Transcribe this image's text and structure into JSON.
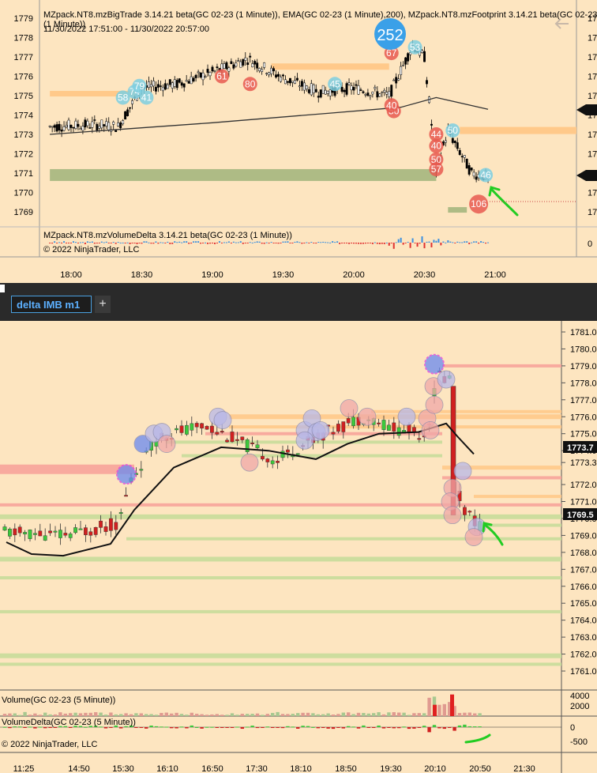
{
  "top_chart": {
    "header_line1": "MZpack.NT8.mzBigTrade 3.14.21 beta(GC 02-23 (1 Minute)), EMA(GC 02-23 (1 Minute),200), MZpack.NT8.mzFootprint 3.14.21 beta(GC 02-23",
    "header_line2": "(1 Minute))",
    "date_range": "11/30/2022 17:51:00 - 11/30/2022 20:57:00",
    "sub_header": "MZpack.NT8.mzVolumeDelta 3.14.21 beta(GC 02-23 (1 Minute))",
    "copyright": "© 2022 NinjaTrader, LLC",
    "big_trade_label": "252",
    "bubble_labels": [
      "58",
      "74",
      "79",
      "41",
      "80",
      "61",
      "45",
      "67",
      "53",
      "50",
      "40",
      "40",
      "44",
      "50",
      "57",
      "106",
      "50",
      "46"
    ],
    "delta_zero_label": "0"
  },
  "tab": {
    "label": "delta IMB m1",
    "add_label": "+"
  },
  "bottom_chart": {
    "volume_title": "Volume(GC 02-23 (5 Minute))",
    "delta_title": "VolumeDelta(GC 02-23 (5 Minute))",
    "copyright": "© 2022 NinjaTrader, LLC",
    "price_tag_1": "1773.7",
    "price_tag_2": "1769.5"
  },
  "chart_data": [
    {
      "type": "candlestick",
      "instrument": "GC 02-23",
      "timeframe": "1 Minute",
      "y_ticks": [
        1779,
        1778,
        1777,
        1776,
        1775,
        1774,
        1773,
        1772,
        1771,
        1770,
        1769
      ],
      "x_ticks": [
        "18:00",
        "18:30",
        "19:00",
        "19:30",
        "20:00",
        "20:30",
        "21:00"
      ],
      "ylim": [
        1768.5,
        1779.3
      ],
      "approx_close_path": [
        {
          "time": "17:51",
          "price": 1773.4
        },
        {
          "time": "18:10",
          "price": 1773.5
        },
        {
          "time": "18:20",
          "price": 1773.4
        },
        {
          "time": "18:30",
          "price": 1775.4
        },
        {
          "time": "18:45",
          "price": 1775.6
        },
        {
          "time": "19:00",
          "price": 1776.2
        },
        {
          "time": "19:15",
          "price": 1776.9
        },
        {
          "time": "19:30",
          "price": 1775.9
        },
        {
          "time": "19:45",
          "price": 1775.2
        },
        {
          "time": "20:00",
          "price": 1775.4
        },
        {
          "time": "20:15",
          "price": 1775.0
        },
        {
          "time": "20:25",
          "price": 1777.6
        },
        {
          "time": "20:30",
          "price": 1777.0
        },
        {
          "time": "20:35",
          "price": 1771.2
        },
        {
          "time": "20:40",
          "price": 1773.2
        },
        {
          "time": "20:50",
          "price": 1771.0
        },
        {
          "time": "20:57",
          "price": 1770.8
        }
      ],
      "ema200_path": [
        {
          "time": "17:51",
          "price": 1773.0
        },
        {
          "time": "19:00",
          "price": 1773.6
        },
        {
          "time": "19:50",
          "price": 1774.1
        },
        {
          "time": "20:20",
          "price": 1774.4
        },
        {
          "time": "20:35",
          "price": 1774.9
        },
        {
          "time": "20:57",
          "price": 1774.3
        }
      ]
    },
    {
      "type": "candlestick",
      "instrument": "GC 02-23",
      "timeframe": "5 Minute",
      "y_ticks": [
        1781.0,
        1780.0,
        1779.0,
        1778.0,
        1777.0,
        1776.0,
        1775.0,
        1774.0,
        1773.3,
        1772.0,
        1771.0,
        1770.0,
        1769.0,
        1768.0,
        1767.0,
        1766.0,
        1765.0,
        1764.0,
        1763.0,
        1762.0,
        1761.0
      ],
      "x_ticks": [
        "11:25",
        "14:50",
        "15:30",
        "16:10",
        "16:50",
        "17:30",
        "18:10",
        "18:50",
        "19:30",
        "20:10",
        "20:50",
        "21:30"
      ],
      "ylim": [
        1760.2,
        1781.5
      ],
      "volume_ticks": [
        4000,
        2000
      ],
      "delta_ticks": [
        0,
        -500
      ],
      "last_prices": [
        1773.7,
        1769.5
      ]
    }
  ]
}
